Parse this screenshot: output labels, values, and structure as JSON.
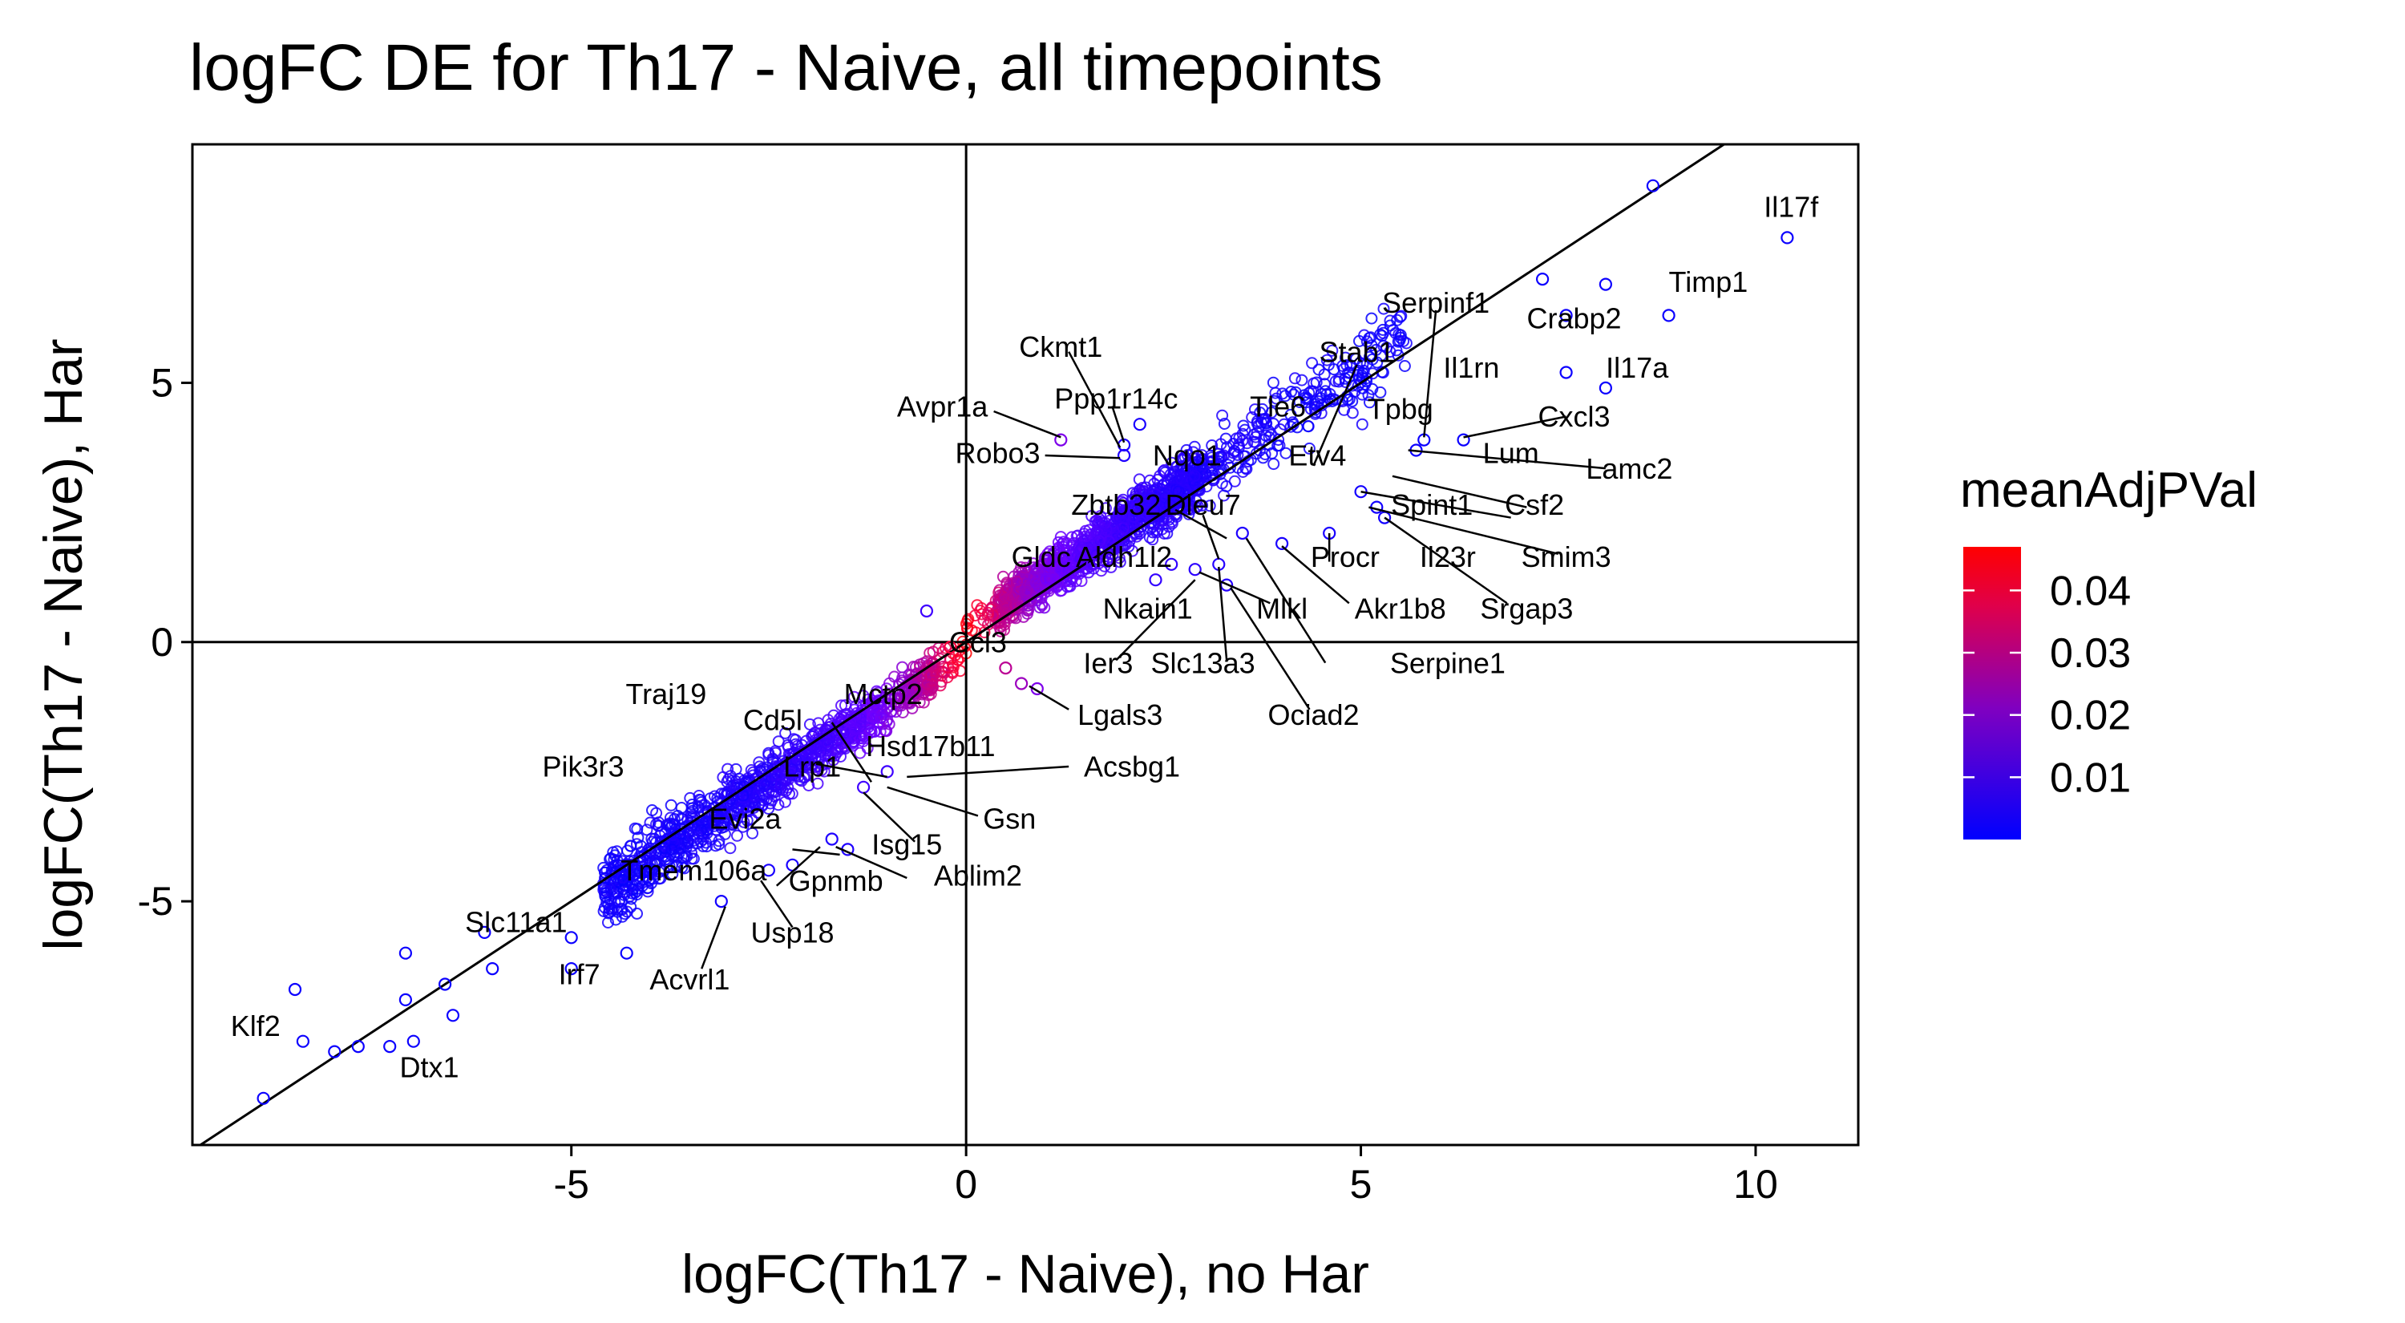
{
  "chart_data": {
    "type": "scatter",
    "title": "logFC DE for Th17 - Naive, all timepoints",
    "xlabel": "logFC(Th17 - Naive), no Har",
    "ylabel": "logFC(Th17 - Naive), Har",
    "xlim": [
      -9.8,
      11.3
    ],
    "ylim": [
      -9.7,
      9.6
    ],
    "xticks": [
      -5,
      0,
      5,
      10
    ],
    "yticks": [
      -5,
      0,
      5
    ],
    "reference_lines": [
      "x=0",
      "y=0",
      "y=x"
    ],
    "grid": false,
    "legend": {
      "title": "meanAdjPVal",
      "placement": "right",
      "range": [
        0,
        0.047
      ],
      "ticks": [
        0.04,
        0.03,
        0.02,
        0.01
      ],
      "low_color": "#0000ff",
      "high_color": "#ff0000"
    },
    "points": [
      {
        "x": 10.4,
        "y": 7.8,
        "p": 0.002
      },
      {
        "x": 8.9,
        "y": 6.3,
        "p": 0.002
      },
      {
        "x": 8.7,
        "y": 8.8,
        "p": 0.002
      },
      {
        "x": 8.1,
        "y": 4.9,
        "p": 0.002
      },
      {
        "x": 8.1,
        "y": 6.9,
        "p": 0.002
      },
      {
        "x": 7.6,
        "y": 5.2,
        "p": 0.002
      },
      {
        "x": 7.6,
        "y": 6.3,
        "p": 0.002
      },
      {
        "x": 7.3,
        "y": 7.0,
        "p": 0.002
      },
      {
        "x": 6.3,
        "y": 3.9,
        "p": 0.002
      },
      {
        "x": 5.7,
        "y": 3.7,
        "p": 0.002
      },
      {
        "x": 5.8,
        "y": 3.9,
        "p": 0.002
      },
      {
        "x": 5.0,
        "y": 2.9,
        "p": 0.003
      },
      {
        "x": 5.2,
        "y": 2.6,
        "p": 0.003
      },
      {
        "x": 5.3,
        "y": 2.4,
        "p": 0.003
      },
      {
        "x": 4.6,
        "y": 2.1,
        "p": 0.004
      },
      {
        "x": 4.0,
        "y": 1.9,
        "p": 0.004
      },
      {
        "x": 3.5,
        "y": 2.1,
        "p": 0.005
      },
      {
        "x": 3.2,
        "y": 1.5,
        "p": 0.006
      },
      {
        "x": 3.3,
        "y": 1.1,
        "p": 0.006
      },
      {
        "x": 2.9,
        "y": 1.4,
        "p": 0.007
      },
      {
        "x": 2.6,
        "y": 1.5,
        "p": 0.008
      },
      {
        "x": 2.4,
        "y": 1.2,
        "p": 0.008
      },
      {
        "x": 1.8,
        "y": 1.6,
        "p": 0.012
      },
      {
        "x": 1.6,
        "y": 1.5,
        "p": 0.014
      },
      {
        "x": 2.0,
        "y": 3.6,
        "p": 0.005
      },
      {
        "x": 2.0,
        "y": 3.8,
        "p": 0.005
      },
      {
        "x": 2.2,
        "y": 4.2,
        "p": 0.004
      },
      {
        "x": 1.2,
        "y": 3.9,
        "p": 0.02
      },
      {
        "x": 0.9,
        "y": -0.9,
        "p": 0.02
      },
      {
        "x": 0.7,
        "y": -0.8,
        "p": 0.025
      },
      {
        "x": 0.5,
        "y": -0.5,
        "p": 0.03
      },
      {
        "x": -0.2,
        "y": -0.1,
        "p": 0.04
      },
      {
        "x": -0.5,
        "y": 0.6,
        "p": 0.01
      },
      {
        "x": -1.0,
        "y": -2.5,
        "p": 0.01
      },
      {
        "x": -1.3,
        "y": -2.8,
        "p": 0.01
      },
      {
        "x": -1.5,
        "y": -4.0,
        "p": 0.005
      },
      {
        "x": -1.7,
        "y": -3.8,
        "p": 0.005
      },
      {
        "x": -2.2,
        "y": -4.3,
        "p": 0.004
      },
      {
        "x": -2.5,
        "y": -4.4,
        "p": 0.004
      },
      {
        "x": -3.1,
        "y": -5.0,
        "p": 0.003
      },
      {
        "x": -4.4,
        "y": -5.0,
        "p": 0.003
      },
      {
        "x": -5.0,
        "y": -5.7,
        "p": 0.002
      },
      {
        "x": -5.0,
        "y": -6.3,
        "p": 0.002
      },
      {
        "x": -6.1,
        "y": -5.6,
        "p": 0.002
      },
      {
        "x": -6.5,
        "y": -7.2,
        "p": 0.002
      },
      {
        "x": -7.1,
        "y": -6.9,
        "p": 0.002
      },
      {
        "x": -7.0,
        "y": -7.7,
        "p": 0.002
      },
      {
        "x": -7.3,
        "y": -7.8,
        "p": 0.002
      },
      {
        "x": -7.7,
        "y": -7.8,
        "p": 0.002
      },
      {
        "x": -8.0,
        "y": -7.9,
        "p": 0.002
      },
      {
        "x": -8.4,
        "y": -7.7,
        "p": 0.002
      },
      {
        "x": -8.5,
        "y": -6.7,
        "p": 0.002
      },
      {
        "x": -8.9,
        "y": -8.8,
        "p": 0.002
      },
      {
        "x": -7.1,
        "y": -6.0,
        "p": 0.002
      },
      {
        "x": -6.6,
        "y": -6.6,
        "p": 0.002
      },
      {
        "x": -6.0,
        "y": -6.3,
        "p": 0.002
      },
      {
        "x": -4.3,
        "y": -6.0,
        "p": 0.002
      }
    ],
    "labels": [
      {
        "text": "Il17f",
        "x": 10.45,
        "y": 8.35
      },
      {
        "text": "Timp1",
        "x": 9.4,
        "y": 6.9
      },
      {
        "text": "Crabp2",
        "x": 7.7,
        "y": 6.2
      },
      {
        "text": "Il17a",
        "x": 8.5,
        "y": 5.25
      },
      {
        "text": "Cxcl3",
        "x": 7.7,
        "y": 4.3
      },
      {
        "text": "Lamc2",
        "x": 8.4,
        "y": 3.3
      },
      {
        "text": "Lum",
        "x": 6.9,
        "y": 3.6
      },
      {
        "text": "Csf2",
        "x": 7.2,
        "y": 2.6
      },
      {
        "text": "Smim3",
        "x": 7.6,
        "y": 1.6
      },
      {
        "text": "Srgap3",
        "x": 7.1,
        "y": 0.6
      },
      {
        "text": "Il1rn",
        "x": 6.4,
        "y": 5.25
      },
      {
        "text": "Serpinf1",
        "x": 5.95,
        "y": 6.5
      },
      {
        "text": "Stab1",
        "x": 4.95,
        "y": 5.55
      },
      {
        "text": "Tpbg",
        "x": 5.5,
        "y": 4.45
      },
      {
        "text": "Tle6",
        "x": 3.95,
        "y": 4.5
      },
      {
        "text": "Etv4",
        "x": 4.45,
        "y": 3.55
      },
      {
        "text": "Nqo1",
        "x": 2.8,
        "y": 3.55
      },
      {
        "text": "Spint1",
        "x": 5.9,
        "y": 2.6
      },
      {
        "text": "Il23r",
        "x": 6.1,
        "y": 1.6
      },
      {
        "text": "Procr",
        "x": 4.8,
        "y": 1.6
      },
      {
        "text": "Akr1b8",
        "x": 5.5,
        "y": 0.6
      },
      {
        "text": "Serpine1",
        "x": 6.1,
        "y": -0.45
      },
      {
        "text": "Mlkl",
        "x": 4.0,
        "y": 0.6
      },
      {
        "text": "Ociad2",
        "x": 4.4,
        "y": -1.45
      },
      {
        "text": "Slc13a3",
        "x": 3.0,
        "y": -0.45
      },
      {
        "text": "Zbtb32",
        "x": 1.9,
        "y": 2.6
      },
      {
        "text": "Dleu7",
        "x": 3.0,
        "y": 2.6
      },
      {
        "text": "Aldh1l2",
        "x": 2.0,
        "y": 1.6
      },
      {
        "text": "Gldc",
        "x": 0.95,
        "y": 1.6
      },
      {
        "text": "Nkain1",
        "x": 2.3,
        "y": 0.6
      },
      {
        "text": "Ier3",
        "x": 1.8,
        "y": -0.45
      },
      {
        "text": "Lgals3",
        "x": 1.95,
        "y": -1.45
      },
      {
        "text": "Ccl3",
        "x": 0.15,
        "y": -0.05
      },
      {
        "text": "Robo3",
        "x": 0.4,
        "y": 3.6
      },
      {
        "text": "Avpr1a",
        "x": -0.3,
        "y": 4.5
      },
      {
        "text": "Ppp1r14c",
        "x": 1.9,
        "y": 4.65
      },
      {
        "text": "Ckmt1",
        "x": 1.2,
        "y": 5.65
      },
      {
        "text": "Traj19",
        "x": -3.8,
        "y": -1.05
      },
      {
        "text": "Cd5l",
        "x": -2.45,
        "y": -1.55
      },
      {
        "text": "Mctp2",
        "x": -1.05,
        "y": -1.05
      },
      {
        "text": "Hsd17b11",
        "x": -0.45,
        "y": -2.05
      },
      {
        "text": "Acsbg1",
        "x": 2.1,
        "y": -2.45
      },
      {
        "text": "Gsn",
        "x": 0.55,
        "y": -3.45
      },
      {
        "text": "Isg15",
        "x": -0.75,
        "y": -3.95
      },
      {
        "text": "Lrp1",
        "x": -1.95,
        "y": -2.45
      },
      {
        "text": "Pik3r3",
        "x": -4.85,
        "y": -2.45
      },
      {
        "text": "Evi2a",
        "x": -2.8,
        "y": -3.45
      },
      {
        "text": "Tmem106a",
        "x": -3.45,
        "y": -4.45
      },
      {
        "text": "Gpnmb",
        "x": -1.65,
        "y": -4.65
      },
      {
        "text": "Ablim2",
        "x": 0.15,
        "y": -4.55
      },
      {
        "text": "Usp18",
        "x": -2.2,
        "y": -5.65
      },
      {
        "text": "Slc11a1",
        "x": -5.7,
        "y": -5.45
      },
      {
        "text": "Irf7",
        "x": -4.9,
        "y": -6.45
      },
      {
        "text": "Acvrl1",
        "x": -3.5,
        "y": -6.55
      },
      {
        "text": "Klf2",
        "x": -9.0,
        "y": -7.45
      },
      {
        "text": "Dtx1",
        "x": -6.8,
        "y": -8.25
      }
    ],
    "label_lines": [
      {
        "from": [
          1.3,
          5.6
        ],
        "to": [
          1.95,
          3.75
        ]
      },
      {
        "from": [
          1.85,
          4.55
        ],
        "to": [
          2.0,
          3.85
        ]
      },
      {
        "from": [
          0.35,
          4.45
        ],
        "to": [
          1.2,
          3.95
        ]
      },
      {
        "from": [
          1.0,
          3.6
        ],
        "to": [
          1.95,
          3.55
        ]
      },
      {
        "from": [
          7.6,
          4.35
        ],
        "to": [
          6.3,
          3.95
        ]
      },
      {
        "from": [
          8.1,
          3.35
        ],
        "to": [
          5.6,
          3.7
        ]
      },
      {
        "from": [
          5.95,
          6.4
        ],
        "to": [
          5.8,
          3.95
        ]
      },
      {
        "from": [
          4.95,
          5.35
        ],
        "to": [
          4.4,
          3.4
        ]
      },
      {
        "from": [
          7.1,
          2.6
        ],
        "to": [
          5.4,
          3.2
        ]
      },
      {
        "from": [
          6.9,
          2.4
        ],
        "to": [
          5.0,
          2.9
        ]
      },
      {
        "from": [
          7.5,
          1.7
        ],
        "to": [
          5.1,
          2.6
        ]
      },
      {
        "from": [
          6.85,
          0.75
        ],
        "to": [
          5.3,
          2.4
        ]
      },
      {
        "from": [
          4.85,
          0.75
        ],
        "to": [
          4.0,
          1.85
        ]
      },
      {
        "from": [
          4.6,
          1.55
        ],
        "to": [
          4.6,
          2.1
        ]
      },
      {
        "from": [
          4.55,
          -0.4
        ],
        "to": [
          3.55,
          2.0
        ]
      },
      {
        "from": [
          4.35,
          -1.3
        ],
        "to": [
          3.35,
          1.05
        ]
      },
      {
        "from": [
          3.3,
          -0.35
        ],
        "to": [
          3.2,
          1.45
        ]
      },
      {
        "from": [
          3.85,
          0.75
        ],
        "to": [
          2.95,
          1.35
        ]
      },
      {
        "from": [
          1.9,
          -0.35
        ],
        "to": [
          2.9,
          1.2
        ]
      },
      {
        "from": [
          2.65,
          2.55
        ],
        "to": [
          3.3,
          2.0
        ]
      },
      {
        "from": [
          3.0,
          2.45
        ],
        "to": [
          3.2,
          1.6
        ]
      },
      {
        "from": [
          1.3,
          -1.3
        ],
        "to": [
          0.8,
          -0.85
        ]
      },
      {
        "from": [
          1.3,
          -2.4
        ],
        "to": [
          -0.75,
          -2.6
        ]
      },
      {
        "from": [
          0.15,
          -3.35
        ],
        "to": [
          -1.0,
          -2.8
        ]
      },
      {
        "from": [
          -1.9,
          -2.35
        ],
        "to": [
          -1.0,
          -2.6
        ]
      },
      {
        "from": [
          -0.65,
          -3.85
        ],
        "to": [
          -1.3,
          -2.9
        ]
      },
      {
        "from": [
          -1.7,
          -1.55
        ],
        "to": [
          -1.2,
          -2.7
        ]
      },
      {
        "from": [
          -0.75,
          -4.55
        ],
        "to": [
          -1.65,
          -3.95
        ]
      },
      {
        "from": [
          -2.4,
          -4.7
        ],
        "to": [
          -1.85,
          -3.95
        ]
      },
      {
        "from": [
          -2.2,
          -5.5
        ],
        "to": [
          -2.6,
          -4.6
        ]
      },
      {
        "from": [
          -3.35,
          -6.3
        ],
        "to": [
          -3.05,
          -5.1
        ]
      },
      {
        "from": [
          -1.6,
          -4.1
        ],
        "to": [
          -2.2,
          -4.0
        ]
      }
    ]
  }
}
